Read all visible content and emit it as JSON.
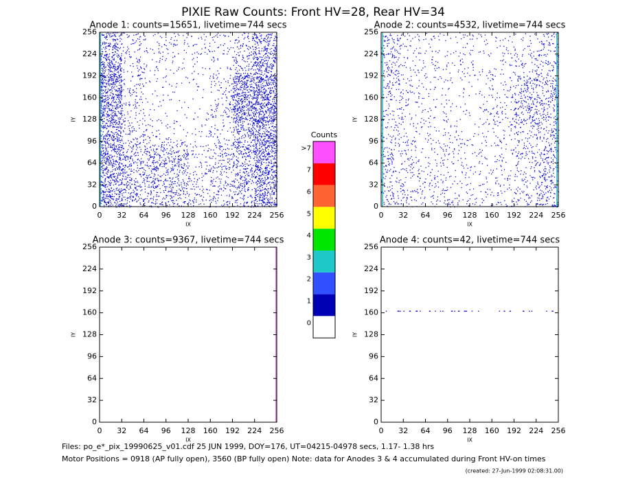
{
  "title": "PIXIE Raw Counts:  Front HV=28, Rear HV=34",
  "chart_data": [
    {
      "type": "density",
      "title": "Anode 1: counts=15651, livetime=744 secs",
      "xlabel": "IX",
      "ylabel": "IY",
      "xlim": [
        0,
        256
      ],
      "ylim": [
        0,
        256
      ],
      "xticks": [
        0,
        32,
        64,
        96,
        128,
        160,
        192,
        224,
        256
      ],
      "yticks": [
        0,
        32,
        64,
        96,
        128,
        160,
        192,
        224,
        256
      ],
      "color": "#0a0ad2",
      "density": [
        [
          120,
          40,
          30,
          30,
          30,
          30,
          60,
          130
        ],
        [
          200,
          40,
          20,
          15,
          15,
          20,
          90,
          150
        ],
        [
          220,
          40,
          15,
          10,
          10,
          40,
          200,
          220
        ],
        [
          200,
          40,
          15,
          10,
          10,
          50,
          200,
          220
        ],
        [
          180,
          50,
          30,
          20,
          15,
          30,
          120,
          200
        ],
        [
          180,
          90,
          90,
          90,
          30,
          60,
          120,
          200
        ],
        [
          170,
          100,
          100,
          90,
          40,
          60,
          110,
          190
        ],
        [
          160,
          100,
          90,
          80,
          50,
          60,
          80,
          170
        ]
      ],
      "edge_lines": [
        {
          "x": 1,
          "color": "#20b8c8"
        }
      ]
    },
    {
      "type": "density",
      "title": "Anode 2: counts=4532, livetime=744 secs",
      "xlabel": "IX",
      "ylabel": "IY",
      "xlim": [
        0,
        256
      ],
      "ylim": [
        0,
        256
      ],
      "xticks": [
        0,
        32,
        64,
        96,
        128,
        160,
        192,
        224,
        256
      ],
      "yticks": [
        0,
        32,
        64,
        96,
        128,
        160,
        192,
        224,
        256
      ],
      "color": "#0a0ad2",
      "density": [
        [
          60,
          25,
          20,
          20,
          20,
          20,
          20,
          50
        ],
        [
          60,
          25,
          20,
          20,
          20,
          20,
          40,
          60
        ],
        [
          50,
          25,
          20,
          15,
          15,
          30,
          80,
          80
        ],
        [
          40,
          25,
          20,
          15,
          15,
          30,
          90,
          80
        ],
        [
          40,
          25,
          20,
          20,
          15,
          30,
          60,
          70
        ],
        [
          50,
          35,
          30,
          25,
          20,
          25,
          50,
          70
        ],
        [
          50,
          35,
          30,
          25,
          20,
          25,
          40,
          70
        ],
        [
          60,
          40,
          35,
          30,
          25,
          30,
          40,
          90
        ]
      ],
      "edge_lines": [
        {
          "x": 2,
          "color": "#20b8c8"
        },
        {
          "x": 254,
          "color": "#20b8c8"
        }
      ]
    },
    {
      "type": "density",
      "title": "Anode 3: counts=9367, livetime=744 secs",
      "xlabel": "IX",
      "ylabel": "IY",
      "xlim": [
        0,
        256
      ],
      "ylim": [
        0,
        256
      ],
      "xticks": [
        0,
        32,
        64,
        96,
        128,
        160,
        192,
        224,
        256
      ],
      "yticks": [
        0,
        32,
        64,
        96,
        128,
        160,
        192,
        224,
        256
      ],
      "color": "#0a0ad2",
      "edge_lines": [
        {
          "x": 255,
          "color": "#e060e0"
        }
      ]
    },
    {
      "type": "density",
      "title": "Anode 4: counts=42, livetime=744 secs",
      "xlabel": "IX",
      "ylabel": "IY",
      "xlim": [
        0,
        256
      ],
      "ylim": [
        0,
        256
      ],
      "xticks": [
        0,
        32,
        64,
        96,
        128,
        160,
        192,
        224,
        256
      ],
      "yticks": [
        0,
        32,
        64,
        96,
        128,
        160,
        192,
        224,
        256
      ],
      "color": "#0a0ad2",
      "hit_rows": [
        {
          "y": 163,
          "hits": 40
        }
      ]
    }
  ],
  "colorbar": {
    "title": "Counts",
    "levels": [
      {
        "label": ">7",
        "color": "#ff50ff"
      },
      {
        "label": "7",
        "color": "#ff0000"
      },
      {
        "label": "6",
        "color": "#ff6432"
      },
      {
        "label": "5",
        "color": "#ffff00"
      },
      {
        "label": "4",
        "color": "#00e600"
      },
      {
        "label": "3",
        "color": "#1ec8c8"
      },
      {
        "label": "2",
        "color": "#3250ff"
      },
      {
        "label": "1",
        "color": "#0000b4"
      },
      {
        "label": "0",
        "color": "#ffffff"
      }
    ]
  },
  "footer": [
    "Files: po_e*_pix_19990625_v01.cdf    25 JUN 1999, DOY=176, UT=04215-04978 secs,  1.17- 1.38 hrs",
    "Motor Positions = 0918 (AP fully open), 3560 (BP fully open)    Note: data for Anodes 3 & 4 accumulated during Front HV-on times",
    "(created: 27-Jun-1999 02:08:31.00)"
  ]
}
